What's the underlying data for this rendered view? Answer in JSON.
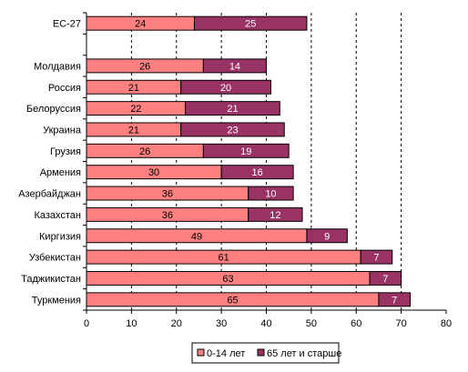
{
  "chart_data": {
    "type": "bar",
    "orientation": "horizontal",
    "stacked": true,
    "categories": [
      "ЕС-27",
      "",
      "Молдавия",
      "Россия",
      "Белоруссия",
      "Украина",
      "Грузия",
      "Армения",
      "Азербайджан",
      "Казахстан",
      "Киргизия",
      "Узбекистан",
      "Таджикистан",
      "Туркмения"
    ],
    "series": [
      {
        "name": "0-14 лет",
        "color": "#ff8080",
        "values": [
          24,
          null,
          26,
          21,
          22,
          21,
          26,
          30,
          36,
          36,
          49,
          61,
          63,
          65
        ]
      },
      {
        "name": "65 лет и старше",
        "color": "#993366",
        "values": [
          25,
          null,
          14,
          20,
          21,
          23,
          19,
          16,
          10,
          12,
          9,
          7,
          7,
          7
        ]
      }
    ],
    "xlim": [
      0,
      80
    ],
    "xticks": [
      0,
      10,
      20,
      30,
      40,
      50,
      60,
      70,
      80
    ],
    "grid": "vertical dashed",
    "legend": "bottom",
    "title": "",
    "xlabel": "",
    "ylabel": ""
  }
}
